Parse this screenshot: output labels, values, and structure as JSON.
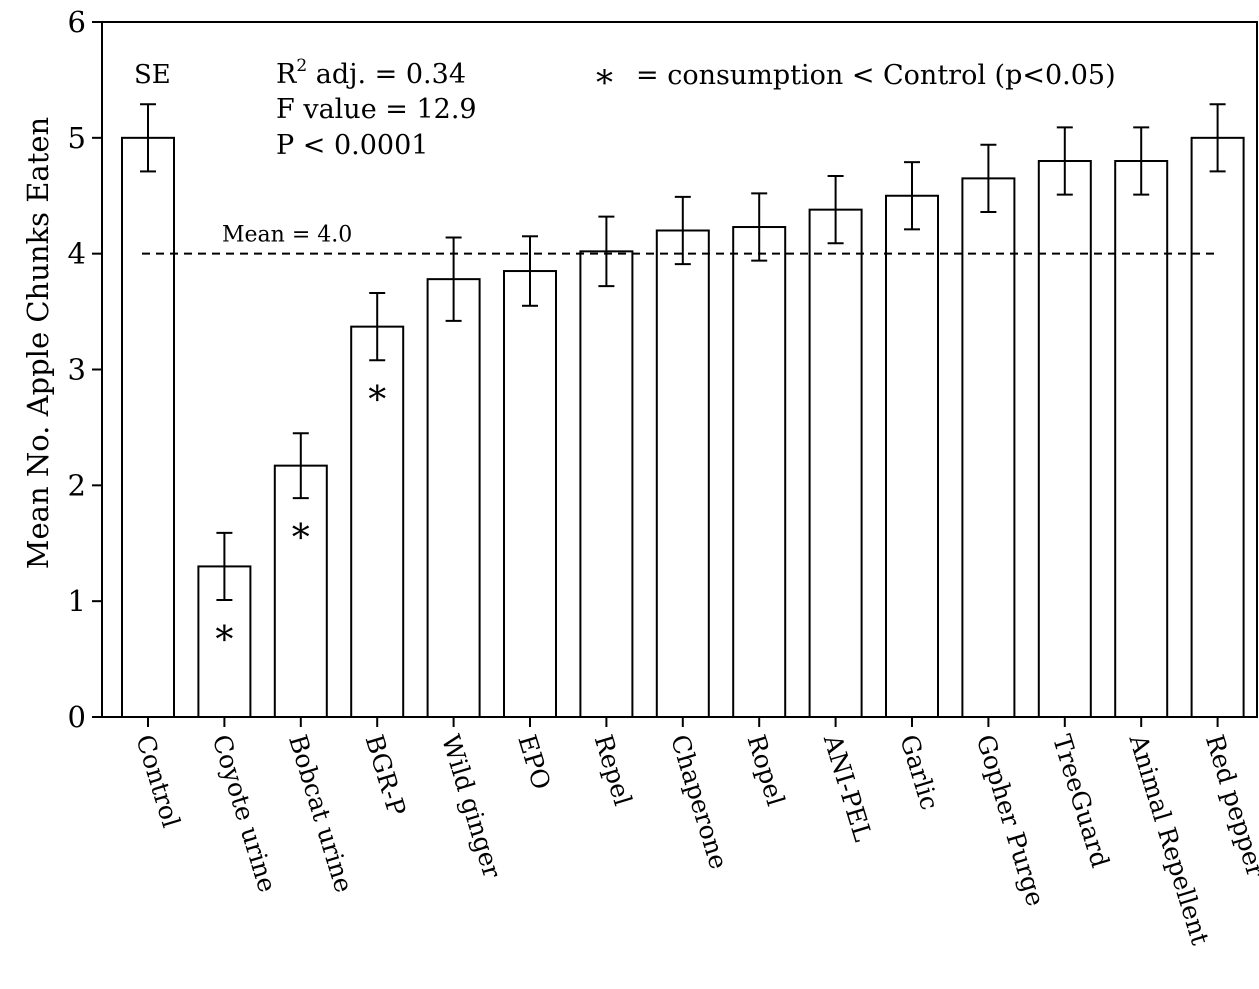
{
  "chart_data": {
    "type": "bar",
    "title": "",
    "xlabel": "",
    "ylabel": "Mean No. Apple Chunks Eaten",
    "ylim": [
      0,
      6
    ],
    "yticks": [
      0,
      1,
      2,
      3,
      4,
      5,
      6
    ],
    "grid": false,
    "categories": [
      "Control",
      "Coyote urine",
      "Bobcat urine",
      "BGR-P",
      "Wild ginger",
      "EPO",
      "Repel",
      "Chaperone",
      "Ropel",
      "ANI-PEL",
      "Garlic",
      "Gopher Purge",
      "TreeGuard",
      "Animal Repellent",
      "Red pepper"
    ],
    "values": [
      5.0,
      1.3,
      2.17,
      3.37,
      3.78,
      3.85,
      4.02,
      4.2,
      4.23,
      4.38,
      4.5,
      4.65,
      4.8,
      4.8,
      5.0
    ],
    "se": [
      0.29,
      0.29,
      0.28,
      0.29,
      0.36,
      0.3,
      0.3,
      0.29,
      0.29,
      0.29,
      0.29,
      0.29,
      0.29,
      0.29,
      0.29
    ],
    "significant": [
      false,
      true,
      true,
      true,
      false,
      false,
      false,
      false,
      false,
      false,
      false,
      false,
      false,
      false,
      false
    ],
    "significance_marker": "*",
    "mean_line": {
      "value": 4.0,
      "label": "Mean = 4.0",
      "style": "dashed"
    },
    "annotations": {
      "se_label": "SE",
      "r2_prefix": "R",
      "r2_sup": "2",
      "r2_rest": " adj. = 0.34",
      "f_value": "F value = 12.9",
      "p_value": "P < 0.0001",
      "legend_star": "*",
      "legend_text": "= consumption <  Control (p<0.05)"
    }
  }
}
